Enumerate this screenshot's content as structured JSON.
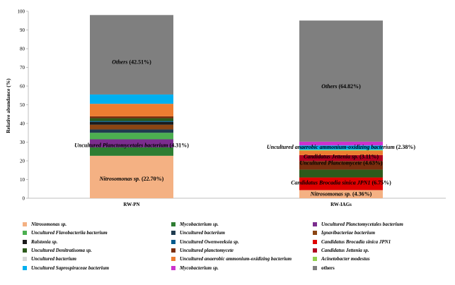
{
  "chart_data": {
    "type": "stacked-bar",
    "ylabel": "Relative abundance (%)",
    "ylim": [
      0,
      100
    ],
    "yticks": [
      0,
      10,
      20,
      30,
      40,
      50,
      60,
      70,
      80,
      90,
      100
    ],
    "grid": false,
    "legend_placement": "bottom",
    "categories": [
      "RW-PN",
      "RW-IAGs"
    ],
    "series": [
      {
        "name": "Nitrosomonas sp.",
        "color": "#f4b183",
        "values": [
          22.7,
          4.36
        ],
        "italic": true
      },
      {
        "name": "Mycobacterium sp.",
        "color": "#2e7d32",
        "values": [
          4.5,
          0.0
        ],
        "italic": true
      },
      {
        "name": "Uncultured Planctomycetales bacterium",
        "color": "#7b2d8e",
        "values": [
          4.31,
          0.0
        ],
        "italic": true
      },
      {
        "name": "Uncultured Flavobacteriia bacterium",
        "color": "#4caf50",
        "values": [
          3.5,
          0.0
        ],
        "italic": true
      },
      {
        "name": "Uncultured bacterium",
        "color": "#1f3c4f",
        "values": [
          1.8,
          0.0
        ],
        "italic": true
      },
      {
        "name": "Ignavibacteriae bacterium",
        "color": "#8b4513",
        "values": [
          2.5,
          0.0
        ],
        "italic": true
      },
      {
        "name": "Ralstonia sp.",
        "color": "#1a1a1a",
        "values": [
          1.5,
          0.0
        ],
        "italic": true
      },
      {
        "name": "Uncultured Owenweeksia sp.",
        "color": "#005a8c",
        "values": [
          0.5,
          0.0
        ],
        "italic": true
      },
      {
        "name": "Candidatus Brocadia sinica JPN1",
        "color": "#e00000",
        "values": [
          0.0,
          6.75
        ],
        "italic": true
      },
      {
        "name": "Uncultured Denitratisoma sp.",
        "color": "#2d5a1b",
        "values": [
          1.5,
          4.2
        ],
        "italic": true
      },
      {
        "name": "Uncultured planctomycete",
        "color": "#7a2e0e",
        "values": [
          1.0,
          4.63
        ],
        "italic": true
      },
      {
        "name": "Candidatus Jettenia sp.",
        "color": "#b00020",
        "values": [
          0.0,
          3.11
        ],
        "italic": true
      },
      {
        "name": "Uncultured bacterium",
        "color": "#d9d9d9",
        "values": [
          0.0,
          0.0
        ],
        "italic": true
      },
      {
        "name": "Uncultured anaerobic ammonium-oxidizing bacterium",
        "color": "#ed7d31",
        "values": [
          6.7,
          2.38
        ],
        "italic": true
      },
      {
        "name": "Acinetobacter modestus",
        "color": "#92d050",
        "values": [
          0.0,
          0.5
        ],
        "italic": true
      },
      {
        "name": "Uncultured Saprospiraceae bacterium",
        "color": "#00b0f0",
        "values": [
          4.98,
          2.3
        ],
        "italic": true
      },
      {
        "name": "Mycobacterium sp.",
        "color": "#cc33cc",
        "values": [
          0.0,
          2.0
        ],
        "italic": true
      },
      {
        "name": "others",
        "color": "#7f7f7f",
        "values": [
          42.51,
          64.82
        ],
        "italic": false
      }
    ],
    "annotations": [
      {
        "text": "Others (42.51%)",
        "bar": 0,
        "y": 73
      },
      {
        "text": "Uncultured Planctomycetales bacterium (4.31%)",
        "bar": 0,
        "y": 28.5
      },
      {
        "text": "Nitrosomonas sp. (22.70%)",
        "bar": 0,
        "y": 10.5
      },
      {
        "text": "Others (64.82%)",
        "bar": 1,
        "y": 60
      },
      {
        "text": "Uncultured anaerobic ammonium-oxidizing bacterium (2.38%)",
        "bar": 1,
        "y": 27.5
      },
      {
        "text": "Candidatus Jettenia sp. (3.11%)",
        "bar": 1,
        "y": 22.5
      },
      {
        "text": "Uncultured Planctomycete (4.63%)",
        "bar": 1,
        "y": 19
      },
      {
        "text": "Candidatus Brocadia sinica JPN1 (6.75%)",
        "bar": 1,
        "y": 8.5
      },
      {
        "text": "Nitrosomonas sp. (4.36%)",
        "bar": 1,
        "y": 2.5
      }
    ]
  }
}
